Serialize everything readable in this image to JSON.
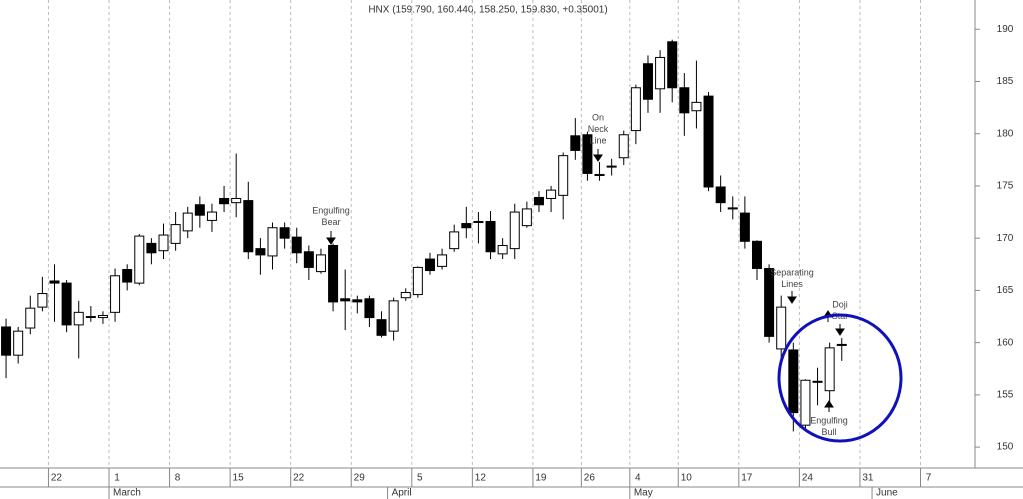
{
  "chart_data": {
    "type": "candlestick",
    "title": "HNX (159.790, 160.440, 158.250, 159.830, +0.35001)",
    "x": [
      0,
      1,
      2,
      3,
      4,
      5,
      6,
      7,
      8,
      9,
      10,
      11,
      12,
      13,
      14,
      15,
      16,
      17,
      18,
      19,
      20,
      21,
      22,
      23,
      24,
      25,
      26,
      27,
      28,
      29,
      30,
      31,
      32,
      33,
      34,
      35,
      36,
      37,
      38,
      39,
      40,
      41,
      42,
      43,
      44,
      45,
      46,
      47,
      48,
      49,
      50,
      51,
      52,
      53,
      54,
      55,
      56,
      57,
      58,
      59,
      60,
      61,
      62,
      63,
      64,
      65,
      66,
      67,
      68,
      69
    ],
    "open": [
      161.5,
      158.8,
      161.4,
      163.4,
      165.9,
      165.7,
      161.7,
      162.5,
      162.4,
      162.9,
      167,
      165.7,
      169.5,
      168.8,
      169.5,
      170.7,
      173.2,
      171.7,
      173.8,
      173.4,
      173.6,
      169,
      168.3,
      171,
      170.1,
      168.7,
      166.8,
      169.3,
      164.2,
      164.1,
      164.2,
      162.2,
      161.1,
      164.3,
      164.6,
      168,
      167.3,
      169,
      171.4,
      171.6,
      171.6,
      168.5,
      169,
      171.2,
      173.9,
      173.8,
      174.1,
      179.8,
      179.9,
      176,
      176.9,
      177.7,
      180.3,
      186.7,
      184.3,
      188.8,
      184.4,
      182.2,
      183.6,
      174.9,
      172.8,
      172.4,
      169.7,
      167.1,
      159.4,
      159.3,
      152.1,
      156.3,
      155.4,
      159.79
    ],
    "high": [
      162.3,
      161.5,
      164.5,
      166.3,
      167.5,
      166,
      164,
      163.5,
      163,
      167.1,
      167.5,
      170.4,
      170,
      171.4,
      172.5,
      173,
      174,
      173.3,
      175,
      178.1,
      175.4,
      170,
      171.5,
      171.5,
      171,
      169.3,
      169,
      169.5,
      167,
      164.5,
      164.5,
      163,
      164.3,
      165.2,
      167.3,
      168.6,
      169,
      171.3,
      173,
      172.5,
      172.6,
      170,
      173.3,
      173.5,
      174.5,
      175,
      178.2,
      181.5,
      180.2,
      177.3,
      177.6,
      180.3,
      184.7,
      187.5,
      188,
      189,
      185.8,
      187,
      184,
      176,
      174,
      174,
      169.8,
      167.5,
      164.5,
      160,
      156.5,
      157.6,
      160,
      160.44
    ],
    "low": [
      156.6,
      158,
      160.8,
      163,
      162,
      161,
      158.5,
      162,
      161.8,
      162,
      165,
      165.5,
      167.5,
      168,
      168.8,
      170,
      171,
      170.6,
      172.5,
      172,
      168,
      166.5,
      167,
      169,
      167.6,
      166,
      166.6,
      163,
      161.2,
      162.8,
      161.5,
      160.5,
      160.2,
      164,
      164.3,
      166.5,
      167,
      168.7,
      170,
      169.5,
      168,
      168,
      168,
      171,
      172.5,
      172.5,
      171.8,
      177.5,
      175.5,
      175.5,
      176,
      177,
      179,
      182,
      182,
      183,
      179.8,
      180.5,
      174.5,
      172.5,
      171.8,
      169,
      166,
      160,
      158,
      151.5,
      151.8,
      154,
      154,
      158.25
    ],
    "close": [
      158.8,
      161.1,
      163.3,
      164.7,
      165.7,
      161.7,
      162.9,
      162.5,
      162.6,
      166.4,
      165.8,
      170.2,
      168.6,
      170.3,
      171.3,
      172.4,
      172.2,
      172.5,
      173.3,
      173.8,
      168.7,
      168.4,
      171,
      170,
      168.6,
      167.2,
      168.4,
      163.9,
      164,
      163.9,
      162.4,
      160.7,
      164,
      164.8,
      167.2,
      166.9,
      168.4,
      170.6,
      171,
      171.5,
      168.7,
      169.3,
      172.5,
      172.8,
      173.2,
      174.6,
      177.9,
      178.4,
      176.2,
      176.1,
      176.9,
      179.9,
      184.4,
      183.3,
      187.3,
      184.4,
      182,
      183,
      174.9,
      173.4,
      172.9,
      169.7,
      167.1,
      160.6,
      163.4,
      153.3,
      156.4,
      156.2,
      159.5,
      159.83
    ],
    "xlim": [
      -0.5,
      80
    ],
    "ylim": [
      148,
      192.8
    ],
    "yticks": [
      150,
      155,
      160,
      165,
      170,
      175,
      180,
      185,
      190
    ],
    "xticks": [
      {
        "value": 3.5,
        "label": "22"
      },
      {
        "value": 8.5,
        "label": "1"
      },
      {
        "value": 13.5,
        "label": "8"
      },
      {
        "value": 18.5,
        "label": "15"
      },
      {
        "value": 23.5,
        "label": "22"
      },
      {
        "value": 28.5,
        "label": "29"
      },
      {
        "value": 33.5,
        "label": "5"
      },
      {
        "value": 38.5,
        "label": "12"
      },
      {
        "value": 43.5,
        "label": "19"
      },
      {
        "value": 47.5,
        "label": "26"
      },
      {
        "value": 51.5,
        "label": "4"
      },
      {
        "value": 55.5,
        "label": "10"
      },
      {
        "value": 60.5,
        "label": "17"
      },
      {
        "value": 65.5,
        "label": "24"
      },
      {
        "value": 70.5,
        "label": "31"
      },
      {
        "value": 75.5,
        "label": "7"
      }
    ],
    "months": [
      {
        "value": 8.5,
        "label": "March"
      },
      {
        "value": 31.5,
        "label": "April"
      },
      {
        "value": 51.5,
        "label": "May"
      },
      {
        "value": 71.5,
        "label": "June"
      }
    ],
    "up_color": "#ffffff",
    "down_color": "#000000",
    "grid": true,
    "annotations": [
      [
        "Engulfing",
        "Bear"
      ],
      [
        "On",
        "Neck",
        "Line"
      ],
      [
        "Separating",
        "Lines"
      ],
      [
        "Doji",
        "Star"
      ],
      [
        "Engulfing",
        "Bull"
      ]
    ]
  }
}
